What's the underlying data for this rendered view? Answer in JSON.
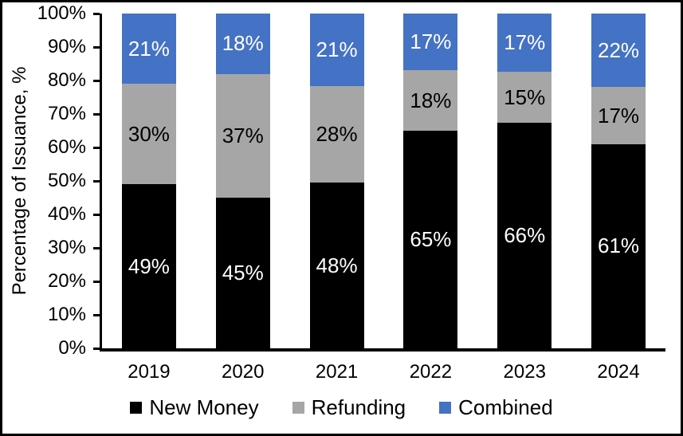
{
  "figure": {
    "background_color": "#FFFFFF",
    "border_color": "#000000",
    "axis_color": "#000000"
  },
  "chart_data": {
    "type": "bar",
    "stacked": true,
    "orientation": "vertical",
    "title": "",
    "xlabel": "",
    "ylabel": "Percentage of Issuance, %",
    "ylim": [
      0,
      100
    ],
    "grid": false,
    "legend_position": "bottom",
    "value_suffix": "%",
    "yticks": [
      "0%",
      "10%",
      "20%",
      "30%",
      "40%",
      "50%",
      "60%",
      "70%",
      "80%",
      "90%",
      "100%"
    ],
    "categories": [
      "2019",
      "2020",
      "2021",
      "2022",
      "2023",
      "2024"
    ],
    "series": [
      {
        "name": "New Money",
        "color": "#000000",
        "label_color": "#FFFFFF",
        "values": [
          49,
          45,
          48,
          65,
          66,
          61
        ]
      },
      {
        "name": "Refunding",
        "color": "#A6A6A6",
        "label_color": "#000000",
        "values": [
          30,
          37,
          28,
          18,
          15,
          17
        ]
      },
      {
        "name": "Combined",
        "color": "#4472C4",
        "label_color": "#FFFFFF",
        "values": [
          21,
          18,
          21,
          17,
          17,
          22
        ]
      }
    ]
  }
}
